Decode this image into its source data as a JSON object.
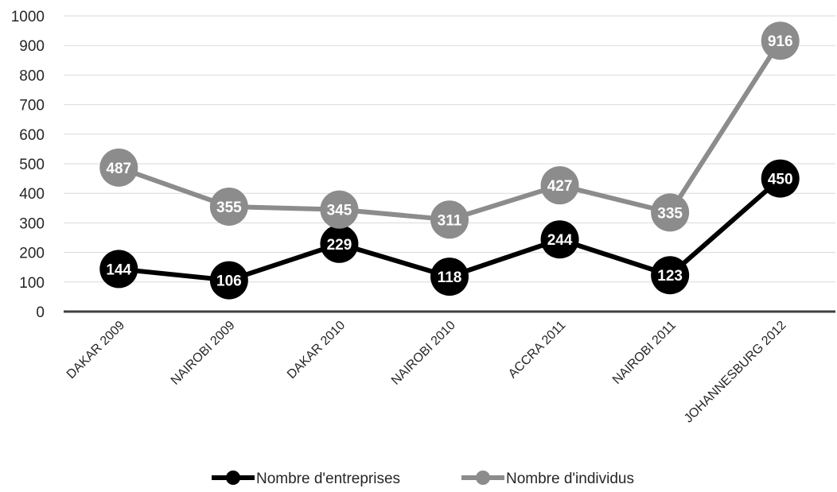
{
  "chart_data": {
    "type": "line",
    "title": "",
    "xlabel": "",
    "ylabel": "",
    "ylim": [
      0,
      1000
    ],
    "yticks": [
      0,
      100,
      200,
      300,
      400,
      500,
      600,
      700,
      800,
      900,
      1000
    ],
    "grid": true,
    "legend_position": "bottom",
    "categories": [
      "DAKAR 2009",
      "NAIROBI 2009",
      "DAKAR 2010",
      "NAIROBI 2010",
      "ACCRA 2011",
      "NAIROBI 2011",
      "JOHANNESBURG 2012"
    ],
    "series": [
      {
        "name": "Nombre d'entreprises",
        "color": "#000000",
        "values": [
          144,
          106,
          229,
          118,
          244,
          123,
          450
        ]
      },
      {
        "name": "Nombre d'individus",
        "color": "#8c8c8c",
        "values": [
          487,
          355,
          345,
          311,
          427,
          335,
          916
        ]
      }
    ],
    "data_labels": true
  }
}
